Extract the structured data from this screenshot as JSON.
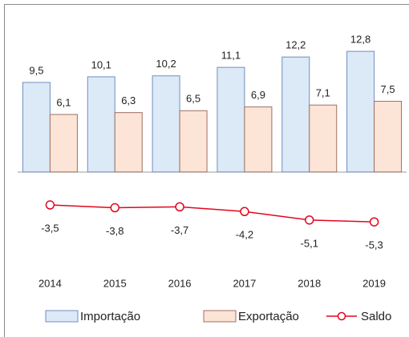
{
  "chart_data": {
    "type": "bar",
    "categories": [
      "2014",
      "2015",
      "2016",
      "2017",
      "2018",
      "2019"
    ],
    "series": [
      {
        "name": "Importação",
        "type": "bar",
        "color": "#dce9f7",
        "stroke": "#6f8fbf",
        "values": [
          9.5,
          10.1,
          10.2,
          11.1,
          12.2,
          12.8
        ],
        "value_labels": [
          "9,5",
          "10,1",
          "10,2",
          "11,1",
          "12,2",
          "12,8"
        ]
      },
      {
        "name": "Exportação",
        "type": "bar",
        "color": "#fce4d6",
        "stroke": "#9e7060",
        "values": [
          6.1,
          6.3,
          6.5,
          6.9,
          7.1,
          7.5
        ],
        "value_labels": [
          "6,1",
          "6,3",
          "6,5",
          "6,9",
          "7,1",
          "7,5"
        ]
      },
      {
        "name": "Saldo",
        "type": "line",
        "color": "#e3061c",
        "values": [
          -3.5,
          -3.8,
          -3.7,
          -4.2,
          -5.1,
          -5.3
        ],
        "value_labels": [
          "-3,5",
          "-3,8",
          "-3,7",
          "-4,2",
          "-5,1",
          "-5,3"
        ]
      }
    ],
    "ylim": [
      -8,
      14
    ],
    "legend": "bottom"
  }
}
